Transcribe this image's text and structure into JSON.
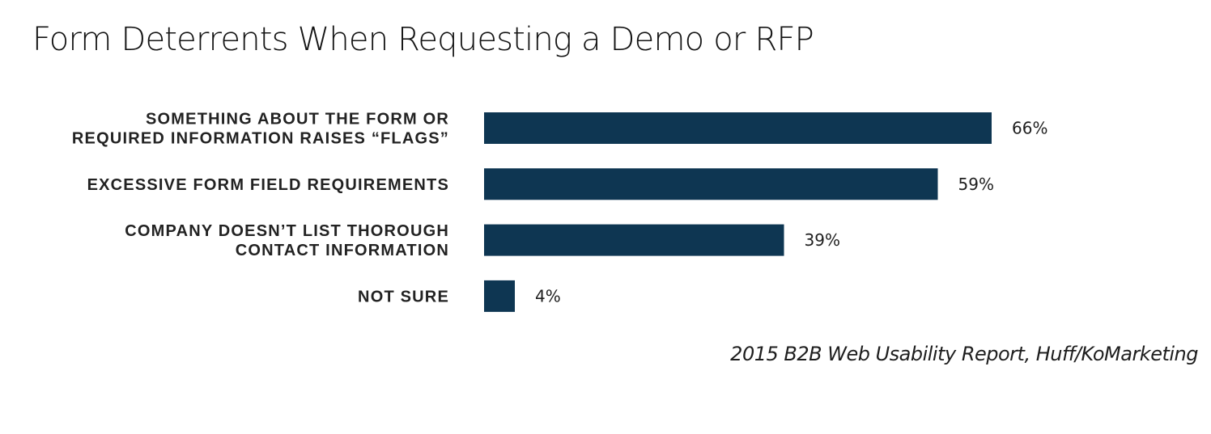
{
  "title": "Form Deterrents When Requesting a Demo or RFP",
  "source": "2015 B2B Web Usability Report, Huff/KoMarketing",
  "colors": {
    "bar": "#0e3652",
    "text": "#222222"
  },
  "chart_data": {
    "type": "bar",
    "orientation": "horizontal",
    "title": "Form Deterrents When Requesting a Demo or RFP",
    "categories": [
      [
        "SOMETHING ABOUT THE FORM OR",
        "REQUIRED INFORMATION RAISES “FLAGS”"
      ],
      [
        "EXCESSIVE FORM FIELD REQUIREMENTS"
      ],
      [
        "COMPANY DOESN’T LIST THOROUGH",
        "CONTACT INFORMATION"
      ],
      [
        "NOT SURE"
      ]
    ],
    "values": [
      66,
      59,
      39,
      4
    ],
    "value_labels": [
      "66%",
      "59%",
      "39%",
      "4%"
    ],
    "unit": "%",
    "xlim": [
      0,
      100
    ],
    "grid": false,
    "legend": "none"
  }
}
